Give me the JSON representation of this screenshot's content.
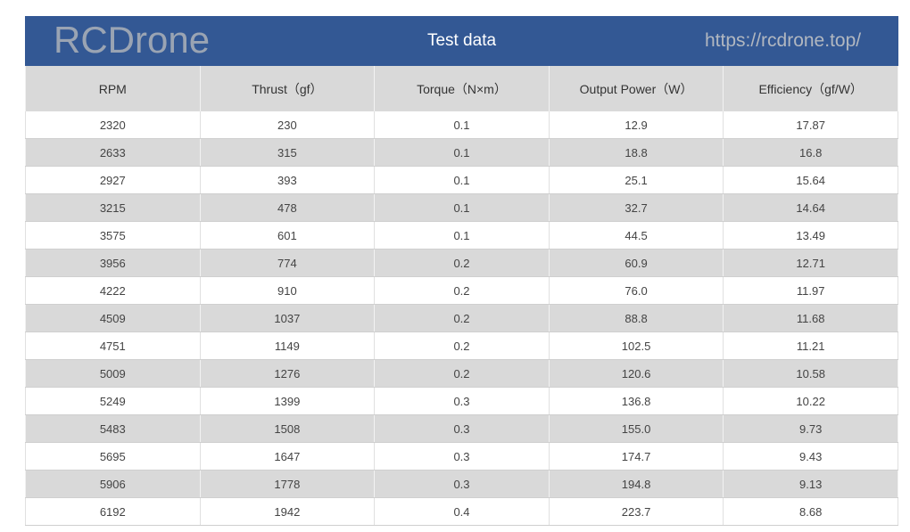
{
  "title": "Test data",
  "columns": [
    "RPM",
    "Thrust（gf）",
    "Torque（N×m）",
    "Output Power（W）",
    "Efficiency（gf/W）"
  ],
  "rows": [
    [
      "2320",
      "230",
      "0.1",
      "12.9",
      "17.87"
    ],
    [
      "2633",
      "315",
      "0.1",
      "18.8",
      "16.8"
    ],
    [
      "2927",
      "393",
      "0.1",
      "25.1",
      "15.64"
    ],
    [
      "3215",
      "478",
      "0.1",
      "32.7",
      "14.64"
    ],
    [
      "3575",
      "601",
      "0.1",
      "44.5",
      "13.49"
    ],
    [
      "3956",
      "774",
      "0.2",
      "60.9",
      "12.71"
    ],
    [
      "4222",
      "910",
      "0.2",
      "76.0",
      "11.97"
    ],
    [
      "4509",
      "1037",
      "0.2",
      "88.8",
      "11.68"
    ],
    [
      "4751",
      "1149",
      "0.2",
      "102.5",
      "11.21"
    ],
    [
      "5009",
      "1276",
      "0.2",
      "120.6",
      "10.58"
    ],
    [
      "5249",
      "1399",
      "0.3",
      "136.8",
      "10.22"
    ],
    [
      "5483",
      "1508",
      "0.3",
      "155.0",
      "9.73"
    ],
    [
      "5695",
      "1647",
      "0.3",
      "174.7",
      "9.43"
    ],
    [
      "5906",
      "1778",
      "0.3",
      "194.8",
      "9.13"
    ],
    [
      "6192",
      "1942",
      "0.4",
      "223.7",
      "8.68"
    ]
  ],
  "watermark": {
    "brand": "RCDrone",
    "url": "https://rcdrone.top/"
  },
  "colors": {
    "title_bar": "#335894",
    "header_bg": "#d9d9d9",
    "alt_row": "#d9d9d9"
  }
}
